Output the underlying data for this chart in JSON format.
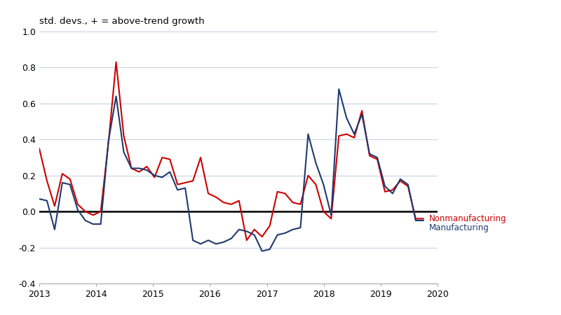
{
  "title": "std. devs., + = above-trend growth",
  "ylim": [
    -0.4,
    1.0
  ],
  "xlim": [
    2013.0,
    2020.0
  ],
  "yticks": [
    -0.4,
    -0.2,
    0.0,
    0.2,
    0.4,
    0.6,
    0.8,
    1.0
  ],
  "xticks": [
    2013,
    2014,
    2015,
    2016,
    2017,
    2018,
    2019,
    2020
  ],
  "zero_line_color": "#000000",
  "grid_color": "#c8d4e8",
  "nonmanufacturing_color": "#cc0000",
  "manufacturing_color": "#1f3a6e",
  "nonmanufacturing_label": "Nonmanufacturing",
  "manufacturing_label": "Manufacturing",
  "nonmanufacturing": [
    0.35,
    0.17,
    0.03,
    0.21,
    0.18,
    0.04,
    0.0,
    -0.02,
    0.0,
    0.38,
    0.83,
    0.42,
    0.24,
    0.22,
    0.25,
    0.19,
    0.3,
    0.29,
    0.15,
    0.16,
    0.17,
    0.3,
    0.1,
    0.08,
    0.05,
    0.04,
    0.06,
    -0.16,
    -0.1,
    -0.14,
    -0.08,
    0.11,
    0.1,
    0.05,
    0.04,
    0.2,
    0.15,
    0.0,
    -0.04,
    0.42,
    0.43,
    0.41,
    0.56,
    0.31,
    0.29,
    0.11,
    0.12,
    0.17,
    0.14,
    -0.04,
    -0.04
  ],
  "manufacturing": [
    0.07,
    0.06,
    -0.1,
    0.16,
    0.15,
    0.01,
    -0.05,
    -0.07,
    -0.07,
    0.39,
    0.64,
    0.33,
    0.24,
    0.24,
    0.23,
    0.2,
    0.19,
    0.22,
    0.12,
    0.13,
    -0.16,
    -0.18,
    -0.16,
    -0.18,
    -0.17,
    -0.15,
    -0.1,
    -0.11,
    -0.13,
    -0.22,
    -0.21,
    -0.13,
    -0.12,
    -0.1,
    -0.09,
    0.43,
    0.27,
    0.15,
    -0.02,
    0.68,
    0.52,
    0.43,
    0.54,
    0.32,
    0.3,
    0.14,
    0.1,
    0.18,
    0.15,
    -0.05,
    -0.05
  ]
}
